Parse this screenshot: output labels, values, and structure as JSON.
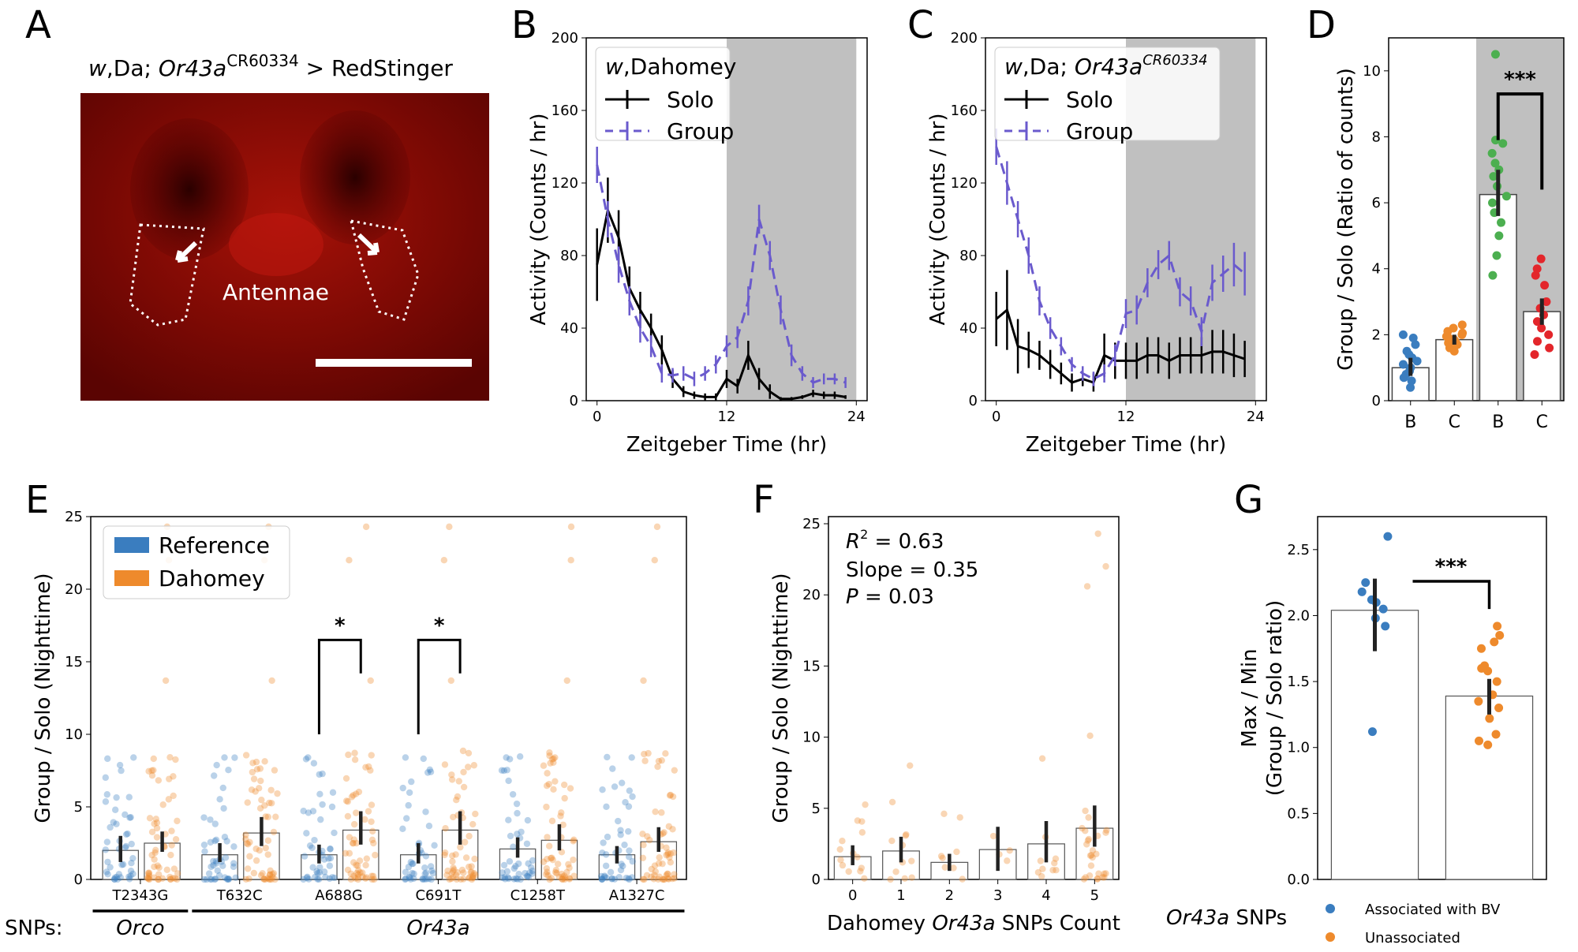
{
  "colors": {
    "solo": "#000000",
    "group": "#6a5acd",
    "night": "#c0c0c0",
    "blue": "#3a7dbf",
    "orange": "#ee8a2c",
    "green": "#4caf50",
    "red": "#e3262b"
  },
  "panel_labels": [
    "A",
    "B",
    "C",
    "D",
    "E",
    "F",
    "G"
  ],
  "panel_a": {
    "title_genotype_prefix": "w",
    "title_genotype_rest": ",Da; ",
    "title_gene": "Or43a",
    "title_superscript": "CR60334",
    "title_suffix": "  > RedStinger",
    "label": "Antennae"
  },
  "chart_data": [
    {
      "panel": "B",
      "type": "line",
      "legend_title": ",Dahomey",
      "legend_title_italic": "w",
      "xlabel": "Zeitgeber Time (hr)",
      "ylabel": "Activity (Counts / hr)",
      "xlim": [
        -1,
        25
      ],
      "ylim": [
        0,
        200
      ],
      "xticks": [
        0,
        12,
        24
      ],
      "yticks": [
        0,
        40,
        80,
        120,
        160,
        200
      ],
      "night_shade": [
        12,
        24
      ],
      "series": [
        {
          "name": "Solo",
          "x": [
            0,
            1,
            2,
            3,
            4,
            5,
            6,
            7,
            8,
            9,
            10,
            11,
            12,
            13,
            14,
            15,
            16,
            17,
            18,
            19,
            20,
            21,
            22,
            23
          ],
          "y": [
            75,
            105,
            90,
            62,
            50,
            40,
            28,
            12,
            5,
            3,
            2,
            2,
            12,
            8,
            25,
            12,
            5,
            1,
            1,
            2,
            4,
            3,
            3,
            2
          ],
          "err": [
            20,
            18,
            15,
            12,
            10,
            8,
            8,
            5,
            3,
            2,
            2,
            2,
            5,
            4,
            8,
            6,
            4,
            1,
            1,
            1,
            2,
            2,
            2,
            1
          ]
        },
        {
          "name": "Group",
          "x": [
            0,
            1,
            2,
            3,
            4,
            5,
            6,
            7,
            8,
            9,
            10,
            11,
            12,
            13,
            14,
            15,
            16,
            17,
            18,
            19,
            20,
            21,
            22,
            23
          ],
          "y": [
            130,
            100,
            75,
            55,
            40,
            30,
            15,
            14,
            15,
            12,
            15,
            20,
            30,
            35,
            55,
            100,
            80,
            50,
            25,
            15,
            10,
            12,
            12,
            10
          ],
          "err": [
            10,
            10,
            10,
            8,
            8,
            6,
            5,
            4,
            4,
            4,
            4,
            5,
            6,
            6,
            8,
            8,
            8,
            8,
            6,
            4,
            3,
            3,
            3,
            3
          ]
        }
      ]
    },
    {
      "panel": "C",
      "type": "line",
      "legend_title_italic": "w",
      "legend_title": ",Da; ",
      "legend_title_gene": "Or43a",
      "legend_title_sup": "CR60334",
      "xlabel": "Zeitgeber Time (hr)",
      "ylabel": "Activity (Counts / hr)",
      "xlim": [
        -1,
        25
      ],
      "ylim": [
        0,
        200
      ],
      "xticks": [
        0,
        12,
        24
      ],
      "yticks": [
        0,
        40,
        80,
        120,
        160,
        200
      ],
      "night_shade": [
        12,
        24
      ],
      "series": [
        {
          "name": "Solo",
          "x": [
            0,
            1,
            2,
            3,
            4,
            5,
            6,
            7,
            8,
            9,
            10,
            11,
            12,
            13,
            14,
            15,
            16,
            17,
            18,
            19,
            20,
            21,
            22,
            23
          ],
          "y": [
            45,
            50,
            30,
            28,
            25,
            20,
            15,
            10,
            12,
            10,
            25,
            22,
            22,
            22,
            25,
            25,
            22,
            25,
            25,
            25,
            27,
            27,
            25,
            23
          ],
          "err": [
            15,
            22,
            15,
            10,
            8,
            8,
            6,
            5,
            4,
            5,
            12,
            10,
            10,
            10,
            10,
            10,
            10,
            10,
            10,
            10,
            12,
            12,
            12,
            10
          ]
        },
        {
          "name": "Group",
          "x": [
            0,
            1,
            2,
            3,
            4,
            5,
            6,
            7,
            8,
            9,
            10,
            11,
            12,
            13,
            14,
            15,
            16,
            17,
            18,
            19,
            20,
            21,
            22,
            23
          ],
          "y": [
            140,
            120,
            100,
            80,
            55,
            40,
            30,
            20,
            15,
            12,
            15,
            25,
            48,
            50,
            65,
            75,
            80,
            60,
            55,
            38,
            65,
            70,
            75,
            70
          ],
          "err": [
            10,
            12,
            10,
            10,
            8,
            6,
            5,
            4,
            4,
            4,
            5,
            6,
            8,
            8,
            8,
            8,
            8,
            8,
            8,
            8,
            10,
            10,
            12,
            12
          ]
        }
      ]
    },
    {
      "panel": "D",
      "type": "bar",
      "ylabel": "Group / Solo (Ratio of counts)",
      "categories": [
        "B",
        "C",
        "B",
        "C"
      ],
      "values": [
        1.0,
        1.85,
        6.25,
        2.7
      ],
      "err_low": [
        0.75,
        1.7,
        5.6,
        2.3
      ],
      "err_high": [
        1.3,
        2.0,
        7.0,
        3.1
      ],
      "ylim": [
        0,
        11
      ],
      "yticks": [
        0,
        2,
        4,
        6,
        8,
        10
      ],
      "shaded_categories": [
        2,
        3
      ],
      "points": [
        [
          0.4,
          0.6,
          0.7,
          0.8,
          0.9,
          1.0,
          1.1,
          1.2,
          1.3,
          1.4,
          1.5,
          1.7,
          1.9,
          2.0
        ],
        [
          1.5,
          1.6,
          1.7,
          1.75,
          1.8,
          1.85,
          1.9,
          1.95,
          2.0,
          2.05,
          2.1,
          2.2,
          2.3
        ],
        [
          3.8,
          4.4,
          5.0,
          5.4,
          5.7,
          6.0,
          6.2,
          6.5,
          6.8,
          7.0,
          7.2,
          7.5,
          7.8,
          7.9,
          10.5
        ],
        [
          1.4,
          1.6,
          1.8,
          2.0,
          2.2,
          2.4,
          2.6,
          2.8,
          3.0,
          3.5,
          3.8,
          4.0,
          4.3
        ]
      ],
      "significance": "***"
    },
    {
      "panel": "E",
      "type": "bar",
      "ylabel": "Group / Solo (Nighttime)",
      "categories": [
        "T2343G",
        "T632C",
        "A688G",
        "C691T",
        "C1258T",
        "A1327C"
      ],
      "series": [
        {
          "name": "Reference",
          "values": [
            2.0,
            1.7,
            1.7,
            1.7,
            2.1,
            1.7
          ],
          "err_low": [
            1.2,
            1.2,
            1.1,
            1.1,
            1.5,
            1.1
          ],
          "err_high": [
            3.0,
            2.5,
            2.4,
            2.5,
            2.9,
            2.3
          ]
        },
        {
          "name": "Dahomey",
          "values": [
            2.5,
            3.2,
            3.4,
            3.4,
            2.7,
            2.6
          ],
          "err_low": [
            1.9,
            2.3,
            2.4,
            2.4,
            2.0,
            1.9
          ],
          "err_high": [
            3.3,
            4.3,
            4.7,
            4.7,
            3.8,
            3.6
          ]
        }
      ],
      "ylim": [
        0,
        25
      ],
      "yticks": [
        0,
        5,
        10,
        15,
        20,
        25
      ],
      "xlabel_prefix": "SNPs:",
      "groups": [
        {
          "label": "Orco",
          "from": 0,
          "to": 0
        },
        {
          "label": "Or43a",
          "from": 1,
          "to": 5
        }
      ],
      "significance": [
        {
          "category": 2,
          "label": "*"
        },
        {
          "category": 3,
          "label": "*"
        }
      ]
    },
    {
      "panel": "F",
      "type": "bar",
      "ylabel": "Group / Solo (Nighttime)",
      "xlabel_prefix": "Dahomey ",
      "xlabel_gene": "Or43a",
      "xlabel_suffix": " SNPs Count",
      "categories": [
        "0",
        "1",
        "2",
        "3",
        "4",
        "5"
      ],
      "values": [
        1.6,
        2.0,
        1.2,
        2.1,
        2.5,
        3.6
      ],
      "err_low": [
        1.0,
        1.2,
        0.6,
        0.6,
        1.2,
        2.3
      ],
      "err_high": [
        2.4,
        3.0,
        1.8,
        3.7,
        4.1,
        5.2
      ],
      "ylim": [
        0,
        25.5
      ],
      "yticks": [
        0,
        5,
        10,
        15,
        20,
        25
      ],
      "stats": {
        "r2_label": "R",
        "r2_sup": "2",
        "r2_value": " = 0.63",
        "slope": "Slope = 0.35",
        "p_label": "P",
        "p_value": " = 0.03"
      }
    },
    {
      "panel": "G",
      "type": "bar",
      "ylabel_line1": "Max / Min",
      "ylabel_line2": "(Group / Solo ratio)",
      "categories": [
        "Associated with BV",
        "Unassociated"
      ],
      "values": [
        2.04,
        1.39
      ],
      "err_low": [
        1.73,
        1.25
      ],
      "err_high": [
        2.28,
        1.52
      ],
      "ylim": [
        0,
        2.75
      ],
      "yticks": [
        "0.0",
        "0.5",
        "1.0",
        "1.5",
        "2.0",
        "2.5"
      ],
      "points": [
        [
          1.12,
          1.92,
          1.98,
          2.05,
          2.1,
          2.12,
          2.18,
          2.25,
          2.6
        ],
        [
          1.02,
          1.05,
          1.1,
          1.22,
          1.3,
          1.35,
          1.4,
          1.5,
          1.58,
          1.6,
          1.62,
          1.75,
          1.8,
          1.85,
          1.92
        ]
      ],
      "significance": "***",
      "legend_title": "Or43a",
      "legend_title_suffix": " SNPs"
    }
  ]
}
